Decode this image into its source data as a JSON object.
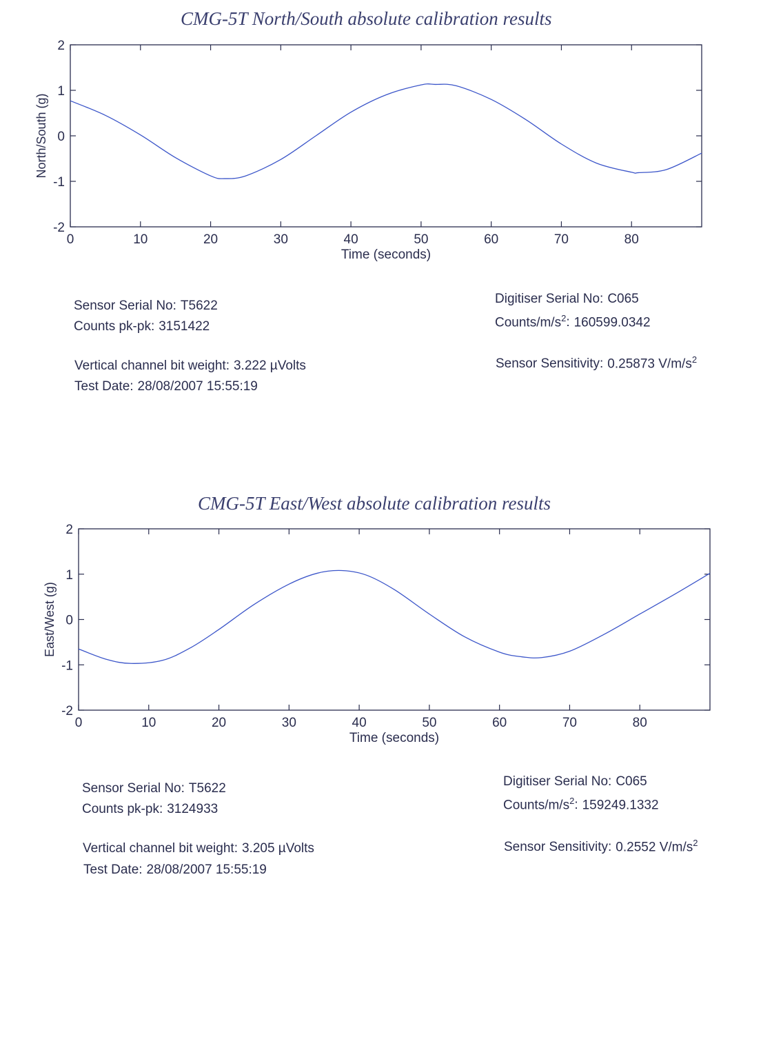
{
  "colors": {
    "line": "#3b55c9",
    "axis": "#2a2d4e",
    "title": "#3a3f6e"
  },
  "chart_data": [
    {
      "type": "line",
      "title": "CMG-5T North/South absolute calibration results",
      "xlabel": "Time (seconds)",
      "ylabel": "North/South (g)",
      "xlim": [
        0,
        90
      ],
      "ylim": [
        -2,
        2
      ],
      "x_ticks": [
        0,
        10,
        20,
        30,
        40,
        50,
        60,
        70,
        80
      ],
      "y_ticks": [
        -2,
        -1,
        0,
        1,
        2
      ],
      "grid": false,
      "series": [
        {
          "x": [
            0,
            5,
            10,
            15,
            20,
            22,
            25,
            30,
            35,
            40,
            45,
            50,
            52,
            55,
            60,
            65,
            70,
            75,
            80,
            81,
            85,
            90
          ],
          "y": [
            0.77,
            0.45,
            0.02,
            -0.48,
            -0.88,
            -0.94,
            -0.88,
            -0.52,
            0.0,
            0.52,
            0.9,
            1.12,
            1.13,
            1.1,
            0.8,
            0.35,
            -0.18,
            -0.6,
            -0.8,
            -0.81,
            -0.74,
            -0.38
          ]
        }
      ],
      "info": {
        "sensor_serial_label": "Sensor Serial No:",
        "sensor_serial": "T5622",
        "counts_pkpk_label": "Counts pk-pk:",
        "counts_pkpk": "3151422",
        "bit_weight_label": "Vertical channel bit weight:",
        "bit_weight": "3.222 µVolts",
        "test_date_label": "Test Date:",
        "test_date": "28/08/2007 15:55:19",
        "digitiser_serial_label": "Digitiser Serial No:",
        "digitiser_serial": "C065",
        "counts_per_ms2_label": "Counts/m/s",
        "counts_per_ms2": "160599.0342",
        "sensitivity_label": "Sensor Sensitivity:",
        "sensitivity": "0.25873 V/m/s"
      }
    },
    {
      "type": "line",
      "title": "CMG-5T East/West absolute calibration results",
      "xlabel": "Time (seconds)",
      "ylabel": "East/West (g)",
      "xlim": [
        0,
        90
      ],
      "ylim": [
        -2,
        2
      ],
      "x_ticks": [
        0,
        10,
        20,
        30,
        40,
        50,
        60,
        70,
        80
      ],
      "y_ticks": [
        -2,
        -1,
        0,
        1,
        2
      ],
      "grid": false,
      "series": [
        {
          "x": [
            0,
            4,
            7.5,
            12,
            16,
            20,
            25,
            30,
            34,
            37.5,
            41,
            45,
            50,
            55,
            60,
            63,
            66,
            70,
            75,
            80,
            85,
            90
          ],
          "y": [
            -0.65,
            -0.88,
            -0.97,
            -0.9,
            -0.62,
            -0.22,
            0.33,
            0.78,
            1.02,
            1.08,
            0.98,
            0.66,
            0.12,
            -0.38,
            -0.72,
            -0.82,
            -0.84,
            -0.7,
            -0.32,
            0.12,
            0.56,
            1.02
          ]
        }
      ],
      "info": {
        "sensor_serial_label": "Sensor Serial No:",
        "sensor_serial": "T5622",
        "counts_pkpk_label": "Counts pk-pk:",
        "counts_pkpk": "3124933",
        "bit_weight_label": "Vertical channel bit weight:",
        "bit_weight": "3.205 µVolts",
        "test_date_label": "Test Date:",
        "test_date": "28/08/2007 15:55:19",
        "digitiser_serial_label": "Digitiser Serial No:",
        "digitiser_serial": "C065",
        "counts_per_ms2_label": "Counts/m/s",
        "counts_per_ms2": "159249.1332",
        "sensitivity_label": "Sensor Sensitivity:",
        "sensitivity": "0.2552 V/m/s"
      }
    }
  ]
}
